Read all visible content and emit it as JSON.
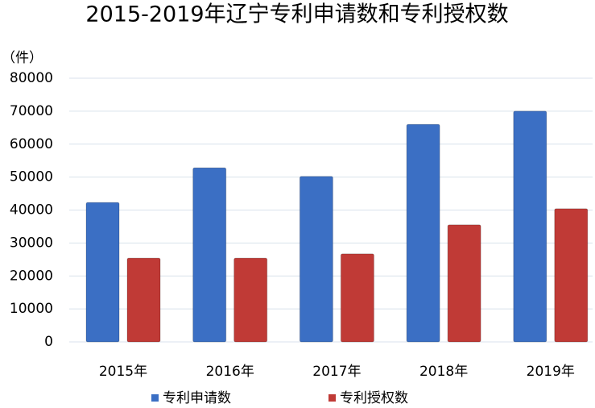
{
  "chart_data": {
    "type": "bar",
    "title": "2015-2019年辽宁专利申请数和专利授权数",
    "y_label": "（件）",
    "categories": [
      "2015年",
      "2016年",
      "2017年",
      "2018年",
      "2019年"
    ],
    "series": [
      {
        "name": "专利申请数",
        "color": "#3b6fc4",
        "values": [
          42300,
          52800,
          50200,
          66000,
          70000
        ]
      },
      {
        "name": "专利授权数",
        "color": "#c03a36",
        "values": [
          25400,
          25400,
          26700,
          35500,
          40400
        ]
      }
    ],
    "ylim": [
      0,
      80000
    ],
    "yticks": [
      0,
      10000,
      20000,
      30000,
      40000,
      50000,
      60000,
      70000,
      80000
    ],
    "grid": true
  }
}
